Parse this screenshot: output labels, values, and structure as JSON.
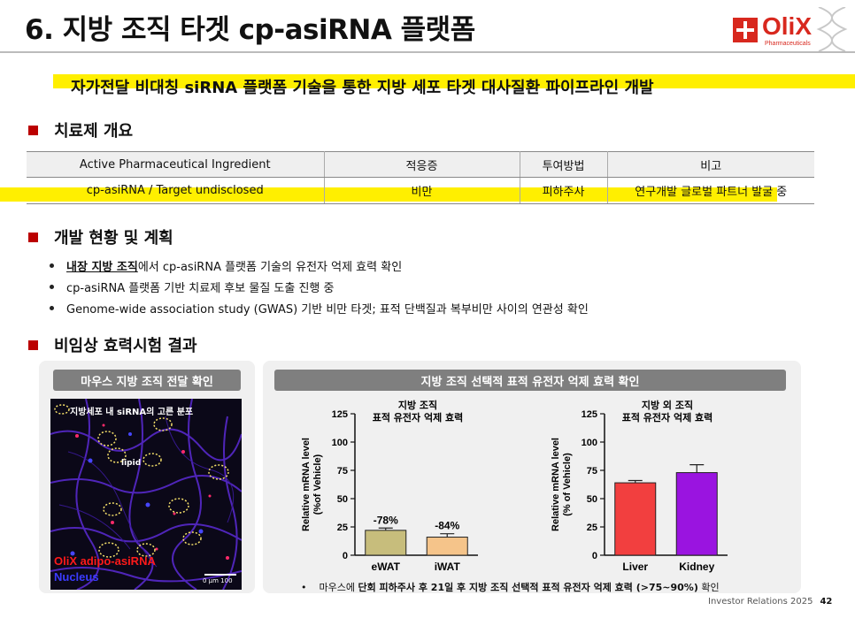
{
  "title": "6. 지방 조직 타겟 cp-asiRNA 플랫폼",
  "logo": {
    "name": "OliX",
    "tagline": "Pharmaceuticals"
  },
  "subtitle": "자가전달 비대칭 siRNA 플랫폼 기술을 통한 지방 세포 타겟 대사질환 파이프라인 개발",
  "overview": {
    "heading": "치료제 개요",
    "headers": [
      "Active Pharmaceutical Ingredient",
      "적응증",
      "투여방법",
      "비고"
    ],
    "row": [
      "cp-asiRNA / Target undisclosed",
      "비만",
      "피하주사",
      "연구개발 글로벌 파트너 발굴 중"
    ]
  },
  "status": {
    "heading": "개발 현황 및 계획",
    "bullets": [
      {
        "bold": "내장 지방 조직",
        "rest": "에서 cp-asiRNA 플랫폼 기술의 유전자 억제 효력 확인"
      },
      {
        "bold": "",
        "rest": "cp-asiRNA 플랫폼 기반 치료제 후보 물질 도출 진행 중"
      },
      {
        "bold": "",
        "rest": "Genome-wide association study (GWAS) 기반 비만 타겟; 표적 단백질과 복부비만 사이의 연관성 확인"
      }
    ]
  },
  "nonclinical": {
    "heading": "비임상 효력시험 결과",
    "left_panel_title": "마우스 지방 조직 전달 확인",
    "right_panel_title": "지방 조직 선택적 표적 유전자 억제 효력 확인",
    "micro_caption": "지방세포 내 siRNA의 고른 분포",
    "micro_lipid": "lipid",
    "micro_red_label": "OliX adipo-asiRNA",
    "micro_blue_label": "Nucleus",
    "micro_scale": "0   μm   100",
    "footnote_pre": "마우스에 ",
    "footnote_bold": "단회 피하주사 후 21일 후 지방 조직 선택적 표적 유전자 억제 효력 (>75~90%)",
    "footnote_post": " 확인"
  },
  "chart_data": [
    {
      "type": "bar",
      "title": "지방 조직\n표적 유전자 억제 효력",
      "ylabel": "Relative mRNA level\n(%of Vehicle)",
      "ylim": [
        0,
        125
      ],
      "yticks": [
        "0",
        "25",
        "50",
        "75",
        "100",
        "125"
      ],
      "categories": [
        "eWAT",
        "iWAT"
      ],
      "values": [
        22,
        16
      ],
      "errors": [
        2,
        3
      ],
      "annotations": [
        "-78%",
        "-84%"
      ],
      "colors": [
        "#c7bd7c",
        "#f5c48a"
      ]
    },
    {
      "type": "bar",
      "title": "지방 외 조직\n표적 유전자 억제 효력",
      "ylabel": "Relative mRNA level\n(% of Vehicle)",
      "ylim": [
        0,
        125
      ],
      "yticks": [
        "0",
        "25",
        "50",
        "75",
        "100",
        "125"
      ],
      "categories": [
        "Liver",
        "Kidney"
      ],
      "values": [
        64,
        73
      ],
      "errors": [
        2,
        7
      ],
      "annotations": [
        "",
        ""
      ],
      "colors": [
        "#f23f3f",
        "#9a14e0"
      ]
    }
  ],
  "footer": {
    "text": "Investor Relations 2025",
    "page": "42"
  }
}
